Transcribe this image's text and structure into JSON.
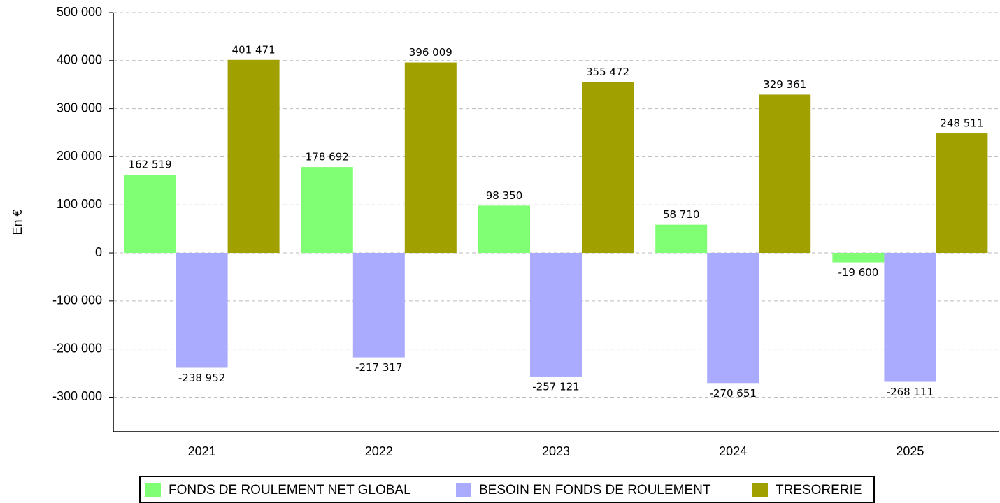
{
  "chart_data": {
    "type": "bar",
    "y_label": "En €",
    "categories": [
      "2021",
      "2022",
      "2023",
      "2024",
      "2025"
    ],
    "series": [
      {
        "name": "FONDS DE ROULEMENT NET GLOBAL",
        "color": "#80ff74",
        "values": [
          162519,
          178692,
          98350,
          58710,
          -19600
        ],
        "value_labels": [
          "162 519",
          "178 692",
          "98 350",
          "58 710",
          "-19 600"
        ]
      },
      {
        "name": "BESOIN EN FONDS DE ROULEMENT",
        "color": "#aaaaff",
        "values": [
          -238952,
          -217317,
          -257121,
          -270651,
          -268111
        ],
        "value_labels": [
          "-238 952",
          "-217 317",
          "-257 121",
          "-270 651",
          "-268 111"
        ]
      },
      {
        "name": "TRESORERIE",
        "color": "#a0a000",
        "values": [
          401471,
          396009,
          355472,
          329361,
          248511
        ],
        "value_labels": [
          "401 471",
          "396 009",
          "355 472",
          "329 361",
          "248 511"
        ]
      }
    ],
    "ylim": [
      -372000,
      500000
    ],
    "yticks": [
      {
        "value": -300000,
        "label": "-300 000"
      },
      {
        "value": -200000,
        "label": "-200 000"
      },
      {
        "value": -100000,
        "label": "-100 000"
      },
      0,
      {
        "value": 100000,
        "label": "100 000"
      },
      {
        "value": 200000,
        "label": "200 000"
      },
      {
        "value": 300000,
        "label": "300 000"
      },
      {
        "value": 400000,
        "label": "400 000"
      },
      {
        "value": 500000,
        "label": "500 000"
      }
    ],
    "grid": true,
    "legend": "bottom"
  }
}
